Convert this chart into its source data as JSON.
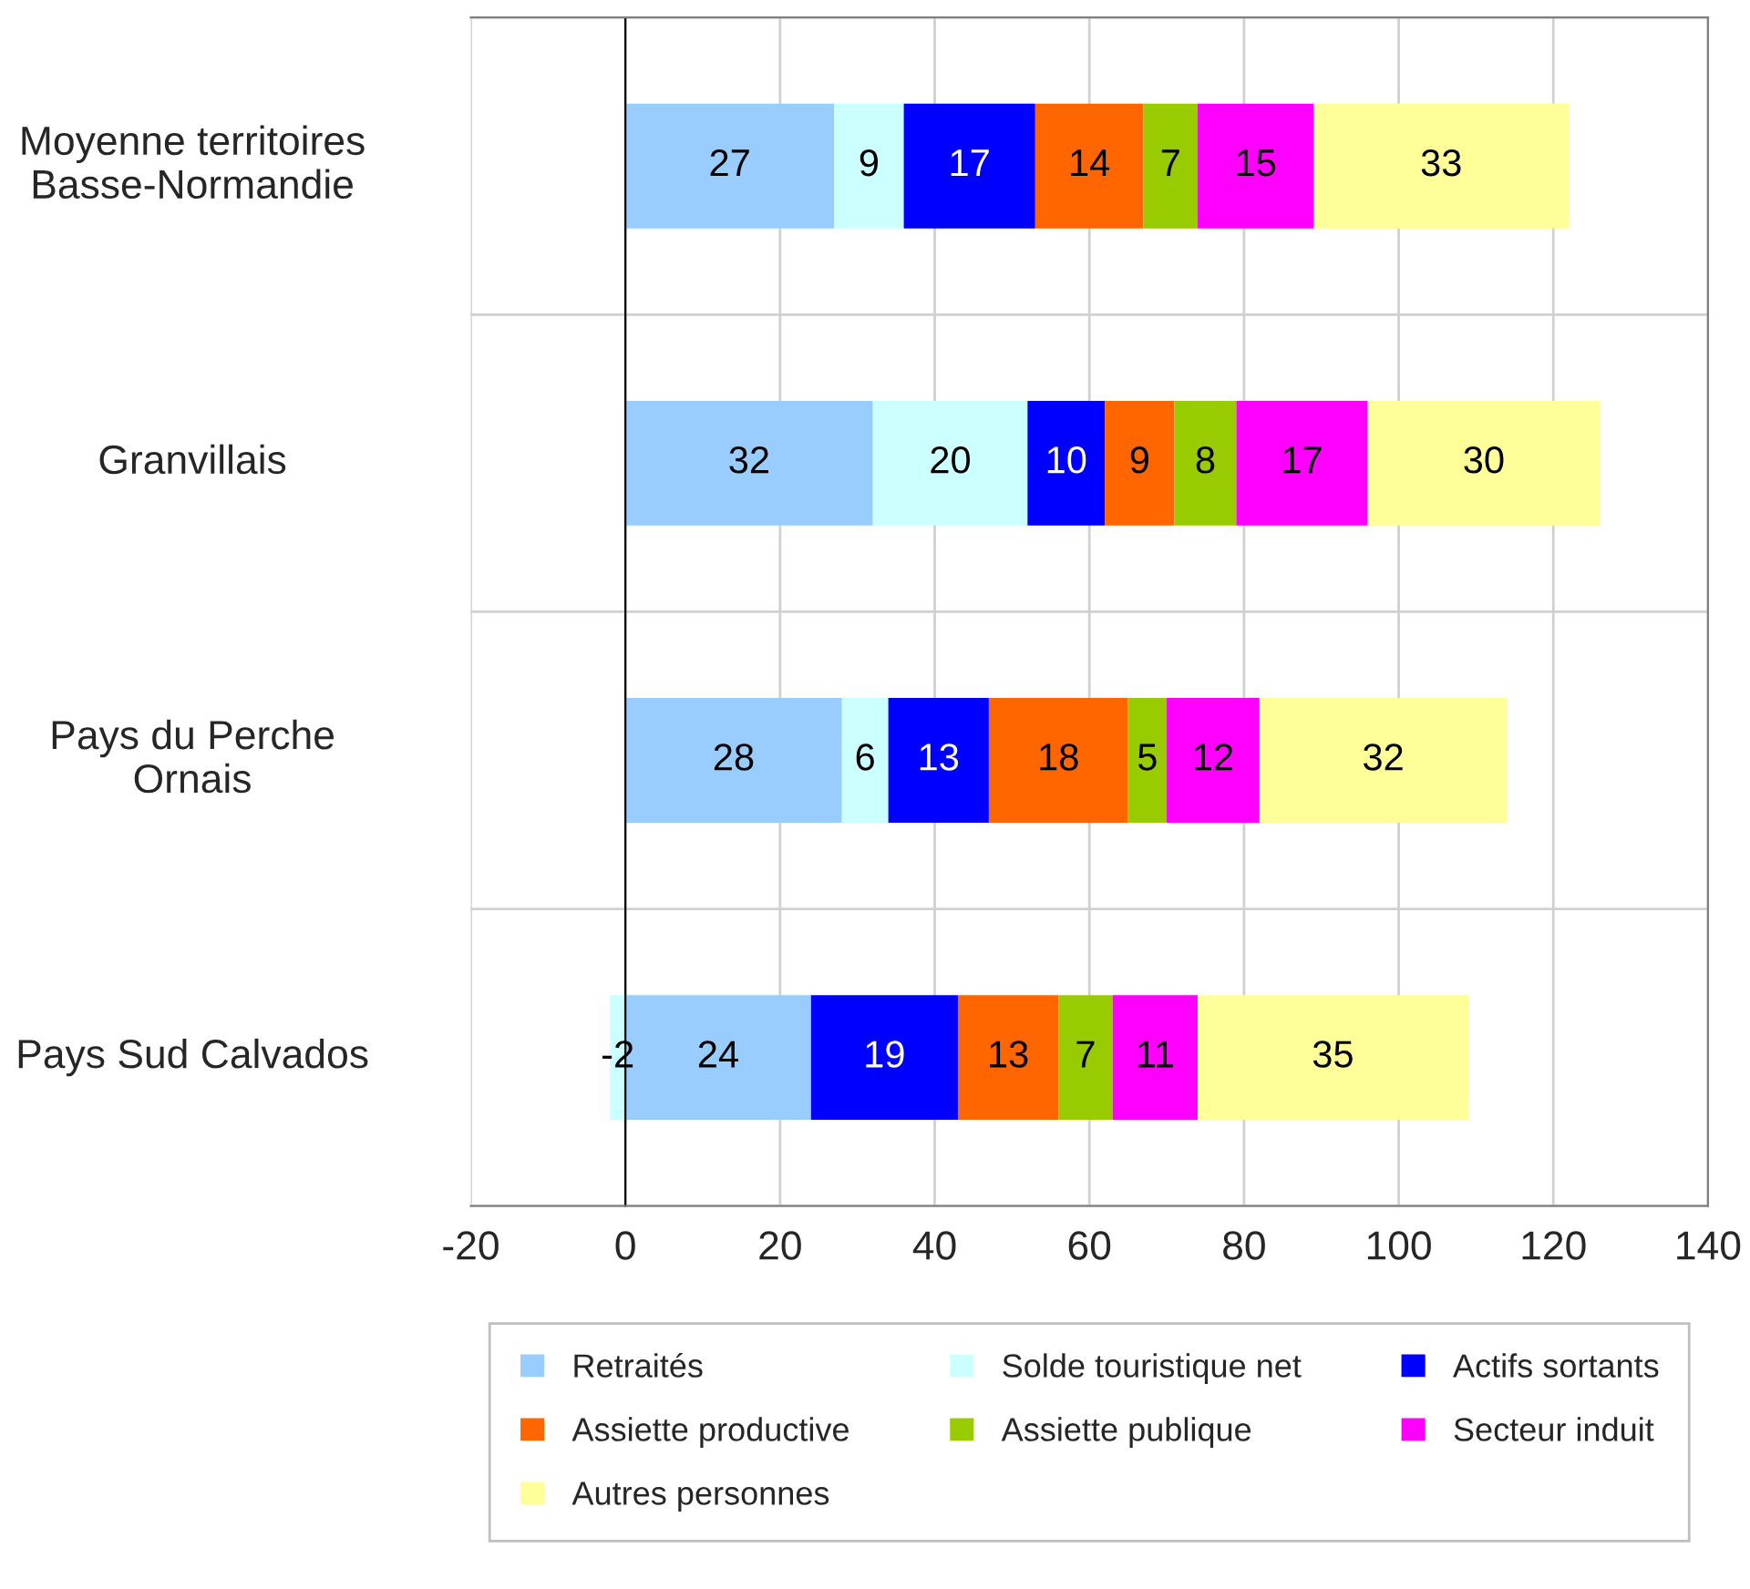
{
  "chart_data": {
    "type": "bar",
    "orientation": "horizontal",
    "stacked": true,
    "data_labels": true,
    "grid": true,
    "legend": "bottom",
    "categories": [
      "Moyenne territoires\nBasse-Normandie",
      "Granvillais",
      "Pays du Perche\nOrnais",
      "Pays Sud Calvados"
    ],
    "xlim": [
      -20,
      140
    ],
    "xticks": [
      -20,
      0,
      20,
      40,
      60,
      80,
      100,
      120,
      140
    ],
    "series": [
      {
        "name": "Retraités",
        "color": "#99ccff",
        "values": [
          27,
          32,
          28,
          24
        ]
      },
      {
        "name": "Solde touristique net",
        "color": "#ccffff",
        "values": [
          9,
          20,
          6,
          -2
        ]
      },
      {
        "name": "Actifs sortants",
        "color": "#0000ff",
        "values": [
          17,
          10,
          13,
          19
        ]
      },
      {
        "name": "Assiette productive",
        "color": "#ff6600",
        "values": [
          14,
          9,
          18,
          13
        ]
      },
      {
        "name": "Assiette publique",
        "color": "#99cc00",
        "values": [
          7,
          8,
          5,
          7
        ]
      },
      {
        "name": "Secteur induit",
        "color": "#ff00ff",
        "values": [
          15,
          17,
          12,
          11
        ]
      },
      {
        "name": "Autres personnes",
        "color": "#ffff99",
        "values": [
          33,
          30,
          32,
          35
        ]
      }
    ]
  }
}
